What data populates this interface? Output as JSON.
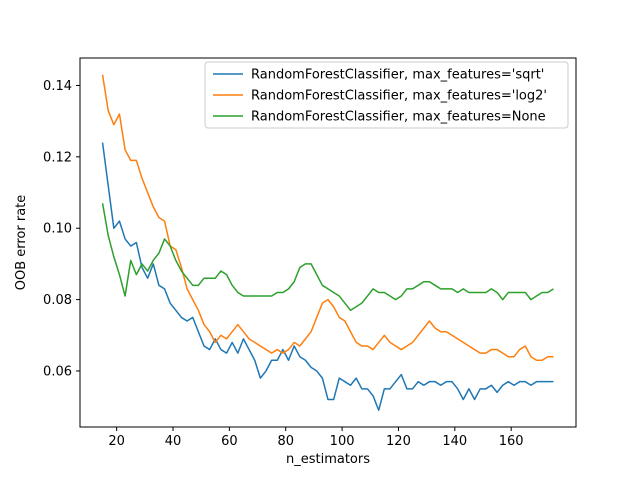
{
  "chart_data": {
    "type": "line",
    "title": "",
    "xlabel": "n_estimators",
    "ylabel": "OOB error rate",
    "xlim": [
      7,
      183
    ],
    "ylim": [
      0.0443,
      0.1477
    ],
    "xticks": [
      20,
      40,
      60,
      80,
      100,
      120,
      140,
      160
    ],
    "yticks": [
      0.06,
      0.08,
      0.1,
      0.12,
      0.14
    ],
    "grid": false,
    "legend_position": "upper right",
    "x": [
      15,
      17,
      19,
      21,
      23,
      25,
      27,
      29,
      31,
      33,
      35,
      37,
      39,
      41,
      43,
      45,
      47,
      49,
      51,
      53,
      55,
      57,
      59,
      61,
      63,
      65,
      67,
      69,
      71,
      73,
      75,
      77,
      79,
      81,
      83,
      85,
      87,
      89,
      91,
      93,
      95,
      97,
      99,
      101,
      103,
      105,
      107,
      109,
      111,
      113,
      115,
      117,
      119,
      121,
      123,
      125,
      127,
      129,
      131,
      133,
      135,
      137,
      139,
      141,
      143,
      145,
      147,
      149,
      151,
      153,
      155,
      157,
      159,
      161,
      163,
      165,
      167,
      169,
      171,
      173,
      175
    ],
    "series": [
      {
        "name": "RandomForestClassifier, max_features='sqrt'",
        "color": "#1f77b4",
        "values": [
          0.124,
          0.112,
          0.1,
          0.102,
          0.097,
          0.095,
          0.096,
          0.089,
          0.086,
          0.09,
          0.084,
          0.083,
          0.079,
          0.077,
          0.075,
          0.074,
          0.075,
          0.071,
          0.067,
          0.066,
          0.069,
          0.066,
          0.065,
          0.068,
          0.065,
          0.069,
          0.066,
          0.063,
          0.058,
          0.06,
          0.063,
          0.063,
          0.066,
          0.063,
          0.067,
          0.064,
          0.063,
          0.061,
          0.06,
          0.058,
          0.052,
          0.052,
          0.058,
          0.057,
          0.056,
          0.058,
          0.055,
          0.055,
          0.053,
          0.049,
          0.055,
          0.055,
          0.057,
          0.059,
          0.055,
          0.055,
          0.057,
          0.056,
          0.057,
          0.057,
          0.056,
          0.057,
          0.057,
          0.055,
          0.052,
          0.055,
          0.052,
          0.055,
          0.055,
          0.056,
          0.054,
          0.056,
          0.057,
          0.056,
          0.057,
          0.057,
          0.056,
          0.057,
          0.057,
          0.057,
          0.057
        ]
      },
      {
        "name": "RandomForestClassifier, max_features='log2'",
        "color": "#ff7f0e",
        "values": [
          0.143,
          0.133,
          0.129,
          0.132,
          0.122,
          0.119,
          0.119,
          0.114,
          0.11,
          0.106,
          0.103,
          0.102,
          0.095,
          0.094,
          0.089,
          0.083,
          0.08,
          0.077,
          0.073,
          0.071,
          0.068,
          0.07,
          0.069,
          0.071,
          0.073,
          0.071,
          0.069,
          0.068,
          0.067,
          0.066,
          0.065,
          0.066,
          0.065,
          0.066,
          0.068,
          0.067,
          0.069,
          0.071,
          0.075,
          0.079,
          0.08,
          0.078,
          0.075,
          0.074,
          0.071,
          0.068,
          0.067,
          0.067,
          0.066,
          0.068,
          0.07,
          0.068,
          0.067,
          0.066,
          0.067,
          0.068,
          0.07,
          0.072,
          0.074,
          0.072,
          0.071,
          0.071,
          0.07,
          0.069,
          0.068,
          0.067,
          0.066,
          0.065,
          0.065,
          0.066,
          0.066,
          0.065,
          0.064,
          0.064,
          0.066,
          0.067,
          0.064,
          0.063,
          0.063,
          0.064,
          0.064
        ]
      },
      {
        "name": "RandomForestClassifier, max_features=None",
        "color": "#2ca02c",
        "values": [
          0.107,
          0.098,
          0.092,
          0.087,
          0.081,
          0.091,
          0.087,
          0.09,
          0.088,
          0.091,
          0.093,
          0.097,
          0.095,
          0.091,
          0.088,
          0.086,
          0.084,
          0.084,
          0.086,
          0.086,
          0.086,
          0.088,
          0.087,
          0.084,
          0.082,
          0.081,
          0.081,
          0.081,
          0.081,
          0.081,
          0.081,
          0.082,
          0.082,
          0.083,
          0.085,
          0.089,
          0.09,
          0.09,
          0.087,
          0.084,
          0.083,
          0.082,
          0.081,
          0.079,
          0.077,
          0.078,
          0.079,
          0.081,
          0.083,
          0.082,
          0.082,
          0.081,
          0.08,
          0.081,
          0.083,
          0.083,
          0.084,
          0.085,
          0.085,
          0.084,
          0.083,
          0.083,
          0.083,
          0.082,
          0.083,
          0.082,
          0.082,
          0.082,
          0.082,
          0.083,
          0.082,
          0.08,
          0.082,
          0.082,
          0.082,
          0.082,
          0.08,
          0.081,
          0.082,
          0.082,
          0.083
        ]
      }
    ]
  }
}
